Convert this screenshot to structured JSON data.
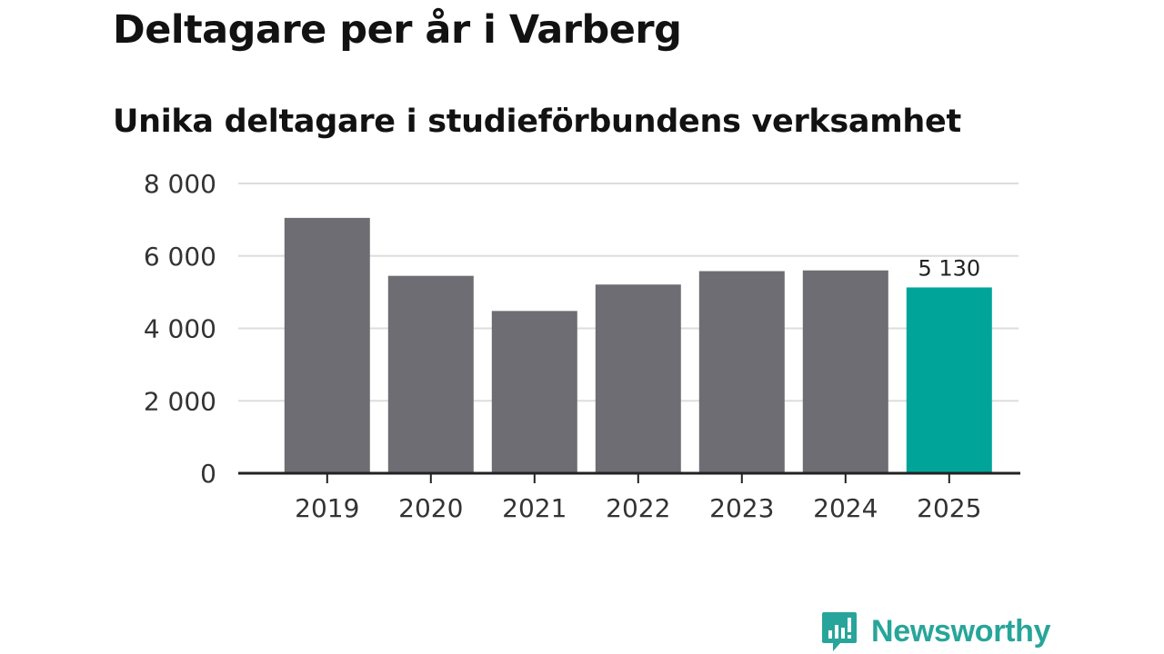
{
  "header": {
    "title": "Deltagare per år i Varberg",
    "subtitle": "Unika deltagare i studieförbundens verksamhet"
  },
  "colors": {
    "bar": "#6e6d73",
    "highlight": "#00a499",
    "grid": "#dddddd",
    "axis": "#222222",
    "brand": "#28a59a"
  },
  "chart_data": {
    "type": "bar",
    "title": "Deltagare per år i Varberg",
    "subtitle": "Unika deltagare i studieförbundens verksamhet",
    "categories": [
      "2019",
      "2020",
      "2021",
      "2022",
      "2023",
      "2024",
      "2025"
    ],
    "values": [
      7050,
      5450,
      4480,
      5210,
      5580,
      5600,
      5130
    ],
    "highlight_index": 6,
    "data_labels": [
      {
        "index": 6,
        "text": "5 130"
      }
    ],
    "ylim": [
      0,
      8000
    ],
    "yticks": [
      0,
      2000,
      4000,
      6000,
      8000
    ],
    "ytick_labels": [
      "0",
      "2 000",
      "4 000",
      "6 000",
      "8 000"
    ],
    "xlabel": "",
    "ylabel": "",
    "grid": true,
    "legend": "none"
  },
  "logo": {
    "text": "Newsworthy",
    "icon": "newsworthy-chart-bubble-icon"
  }
}
